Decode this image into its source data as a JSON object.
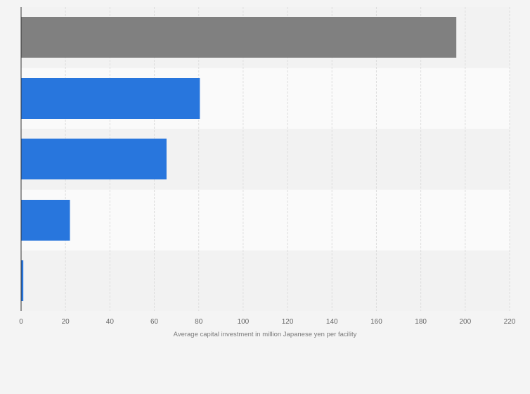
{
  "chart_data": {
    "type": "bar",
    "orientation": "horizontal",
    "categories": [
      "",
      "",
      "",
      "",
      ""
    ],
    "values": [
      196,
      80.5,
      65.5,
      22,
      1
    ],
    "xlabel": "Average capital investment in million Japanese yen per facility",
    "ylabel": "",
    "xlim": [
      0,
      220
    ],
    "xticks": [
      0,
      20,
      40,
      60,
      80,
      100,
      120,
      140,
      160,
      180,
      200,
      220
    ],
    "grid": true,
    "legend": "none",
    "colors": {
      "highlight": "#808080",
      "bar": "#2876dd",
      "grid": "#dddddd",
      "axis": "#333333",
      "band_light": "#fafafa",
      "band_dark": "#f2f2f2"
    },
    "highlighted_index": 0
  }
}
